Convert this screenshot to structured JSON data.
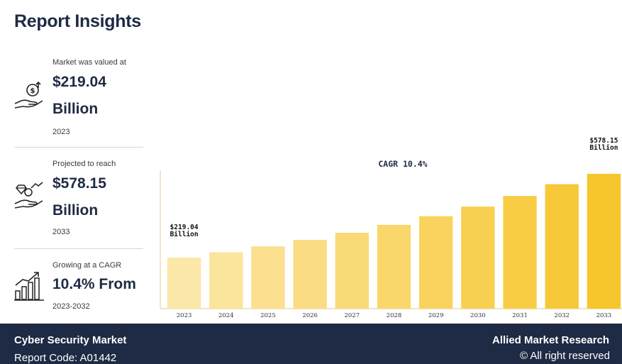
{
  "header": {
    "title": "Report Insights"
  },
  "stats": [
    {
      "caption": "Market was valued at",
      "value": "$219.04",
      "unit": "Billion",
      "year": "2023",
      "icon": "money-hand-icon"
    },
    {
      "caption": "Projected to reach",
      "value": "$578.15",
      "unit": "Billion",
      "year": "2033",
      "icon": "diamond-hand-icon"
    },
    {
      "caption": "Growing at a CAGR",
      "value": "10.4% From",
      "year": "2023-2032",
      "icon": "growth-chart-icon"
    }
  ],
  "chart_data": {
    "type": "bar",
    "categories": [
      "2023",
      "2024",
      "2025",
      "2026",
      "2027",
      "2028",
      "2029",
      "2030",
      "2031",
      "2032",
      "2033"
    ],
    "values": [
      219.04,
      241.82,
      266.97,
      294.73,
      325.38,
      359.22,
      396.58,
      437.83,
      483.36,
      533.63,
      578.15
    ],
    "annotation": "CAGR 10.4%",
    "first_label": [
      "$219.04",
      "Billion"
    ],
    "last_label": [
      "$578.15",
      "Billion"
    ],
    "ylim": [
      0,
      600
    ],
    "grid": false,
    "colors": {
      "start": "#fbe7a8",
      "end": "#f7c62c",
      "axis": "#f2e6c2"
    }
  },
  "footer": {
    "report_name": "Cyber Security Market",
    "report_code": "Report Code: A01442",
    "brand": "Allied Market Research",
    "rights": "© All right reserved"
  }
}
